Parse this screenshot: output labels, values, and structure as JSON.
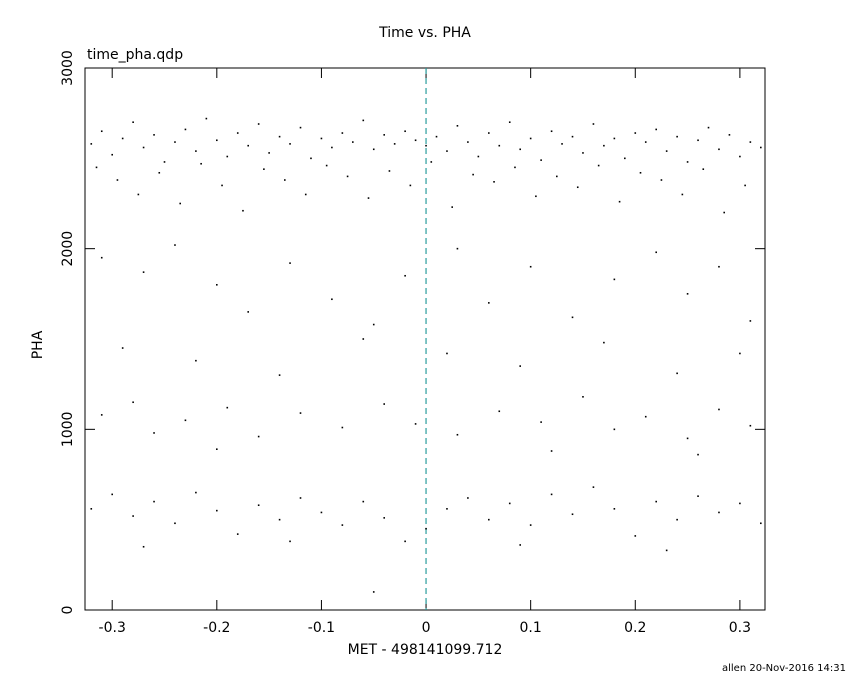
{
  "chart_data": {
    "type": "scatter",
    "title": "Time vs. PHA",
    "subtitle": "time_pha.qdp",
    "x_label": "MET - 498141099.712",
    "y_label": "PHA",
    "footer": "allen 20-Nov-2016 14:31",
    "color": "#000000",
    "reference_x": 0,
    "reference_color": "#2a9d9d",
    "xlim": [
      -0.326,
      0.324
    ],
    "ylim": [
      0,
      3000
    ],
    "xticks": [
      -0.3,
      -0.2,
      -0.1,
      0,
      0.1,
      0.2,
      0.3
    ],
    "yticks": [
      0,
      1000,
      2000,
      3000
    ],
    "x": [
      -0.32,
      -0.31,
      -0.3,
      -0.29,
      -0.28,
      -0.27,
      -0.26,
      -0.25,
      -0.24,
      -0.23,
      -0.22,
      -0.21,
      -0.2,
      -0.19,
      -0.18,
      -0.17,
      -0.16,
      -0.15,
      -0.14,
      -0.13,
      -0.12,
      -0.11,
      -0.1,
      -0.09,
      -0.08,
      -0.07,
      -0.06,
      -0.05,
      -0.04,
      -0.03,
      -0.02,
      -0.01,
      0.0,
      0.01,
      0.02,
      0.03,
      0.04,
      0.05,
      0.06,
      0.07,
      0.08,
      0.09,
      0.1,
      0.11,
      0.12,
      0.13,
      0.14,
      0.15,
      0.16,
      0.17,
      0.18,
      0.19,
      0.2,
      0.21,
      0.22,
      0.23,
      0.24,
      0.25,
      0.26,
      0.27,
      0.28,
      0.29,
      0.3,
      0.31,
      0.32,
      -0.315,
      -0.295,
      -0.275,
      -0.255,
      -0.235,
      -0.215,
      -0.195,
      -0.175,
      -0.155,
      -0.135,
      -0.115,
      -0.095,
      -0.075,
      -0.055,
      -0.035,
      -0.015,
      0.005,
      0.025,
      0.045,
      0.065,
      0.085,
      0.105,
      0.125,
      0.145,
      0.165,
      0.185,
      0.205,
      0.225,
      0.245,
      0.265,
      0.285,
      0.305,
      -0.31,
      -0.27,
      -0.24,
      -0.2,
      -0.17,
      -0.13,
      -0.09,
      -0.05,
      -0.02,
      0.03,
      0.06,
      0.1,
      0.14,
      0.18,
      0.22,
      0.25,
      0.28,
      0.31,
      -0.29,
      -0.22,
      -0.14,
      -0.06,
      0.02,
      0.09,
      0.17,
      0.24,
      0.3,
      -0.31,
      -0.28,
      -0.26,
      -0.23,
      -0.19,
      -0.16,
      -0.12,
      -0.08,
      -0.04,
      -0.01,
      0.03,
      0.07,
      0.11,
      0.15,
      0.18,
      0.21,
      0.25,
      0.28,
      0.31,
      -0.2,
      0.12,
      0.26,
      -0.32,
      -0.3,
      -0.28,
      -0.26,
      -0.24,
      -0.22,
      -0.2,
      -0.18,
      -0.16,
      -0.14,
      -0.12,
      -0.1,
      -0.08,
      -0.06,
      -0.04,
      -0.02,
      0.0,
      0.02,
      0.04,
      0.06,
      0.08,
      0.1,
      0.12,
      0.14,
      0.16,
      0.18,
      0.2,
      0.22,
      0.24,
      0.26,
      0.28,
      0.3,
      0.32,
      -0.27,
      -0.13,
      0.09,
      0.23,
      -0.05
    ],
    "values": [
      2580,
      2650,
      2520,
      2610,
      2700,
      2560,
      2630,
      2480,
      2590,
      2660,
      2540,
      2720,
      2600,
      2510,
      2640,
      2570,
      2690,
      2530,
      2620,
      2580,
      2670,
      2500,
      2610,
      2560,
      2640,
      2590,
      2710,
      2550,
      2630,
      2580,
      2650,
      2600,
      2570,
      2620,
      2540,
      2680,
      2590,
      2510,
      2640,
      2570,
      2700,
      2550,
      2610,
      2490,
      2650,
      2580,
      2620,
      2530,
      2690,
      2570,
      2610,
      2500,
      2640,
      2590,
      2660,
      2540,
      2620,
      2480,
      2600,
      2670,
      2550,
      2630,
      2510,
      2590,
      2560,
      2450,
      2380,
      2300,
      2420,
      2250,
      2470,
      2350,
      2210,
      2440,
      2380,
      2300,
      2460,
      2400,
      2280,
      2430,
      2350,
      2480,
      2230,
      2410,
      2370,
      2450,
      2290,
      2400,
      2340,
      2460,
      2260,
      2420,
      2380,
      2300,
      2440,
      2200,
      2350,
      1950,
      1870,
      2020,
      1800,
      1650,
      1920,
      1720,
      1580,
      1850,
      2000,
      1700,
      1900,
      1620,
      1830,
      1980,
      1750,
      1900,
      1600,
      1450,
      1380,
      1300,
      1500,
      1420,
      1350,
      1480,
      1310,
      1420,
      1080,
      1150,
      980,
      1050,
      1120,
      960,
      1090,
      1010,
      1140,
      1030,
      970,
      1100,
      1040,
      1180,
      1000,
      1070,
      950,
      1110,
      1020,
      890,
      880,
      860,
      560,
      640,
      520,
      600,
      480,
      650,
      550,
      420,
      580,
      500,
      620,
      540,
      470,
      600,
      510,
      380,
      450,
      560,
      620,
      500,
      590,
      470,
      640,
      530,
      680,
      560,
      410,
      600,
      500,
      630,
      540,
      590,
      480,
      350,
      380,
      360,
      330,
      100
    ]
  }
}
